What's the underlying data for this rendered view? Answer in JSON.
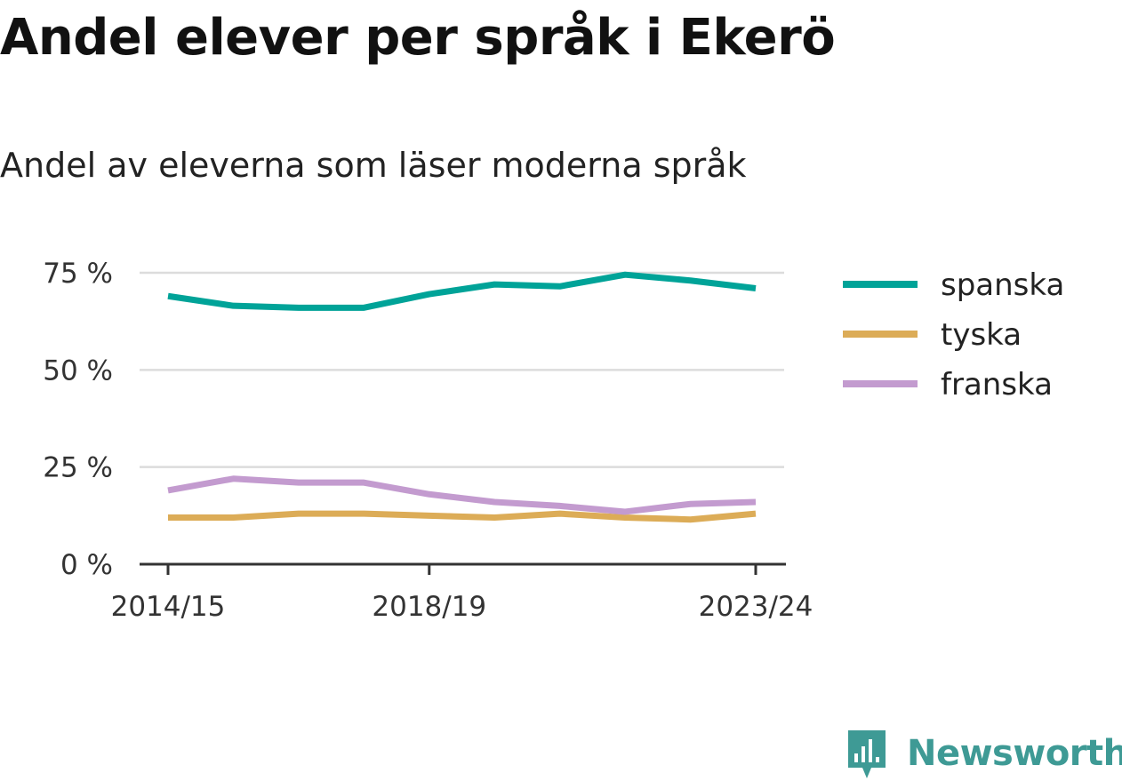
{
  "title": "Andel elever per språk i Ekerö",
  "subtitle": "Andel av eleverna som läser moderna språk",
  "brand": {
    "name": "Newsworthy",
    "color": "#3e9a95",
    "icon": "newsworthy-logo-icon"
  },
  "chart_data": {
    "type": "line",
    "x": [
      "2014/15",
      "2015/16",
      "2016/17",
      "2017/18",
      "2018/19",
      "2019/20",
      "2020/21",
      "2021/22",
      "2022/23",
      "2023/24"
    ],
    "x_tick_labels": [
      "2014/15",
      "2018/19",
      "2023/24"
    ],
    "y_tick_labels": [
      "0 %",
      "25 %",
      "50 %",
      "75 %"
    ],
    "y_ticks": [
      0,
      25,
      50,
      75
    ],
    "ylim": [
      0,
      75
    ],
    "grid": true,
    "legend": "right",
    "series": [
      {
        "name": "spanska",
        "color": "#00a398",
        "values": [
          69,
          66.5,
          66,
          66,
          69.5,
          72,
          71.5,
          74.5,
          73,
          71
        ]
      },
      {
        "name": "tyska",
        "color": "#dcac57",
        "values": [
          12,
          12,
          13,
          13,
          12.5,
          12,
          13,
          12,
          11.5,
          13
        ]
      },
      {
        "name": "franska",
        "color": "#c39bcf",
        "values": [
          19,
          22,
          21,
          21,
          18,
          16,
          15,
          13.5,
          15.5,
          16
        ]
      }
    ]
  }
}
